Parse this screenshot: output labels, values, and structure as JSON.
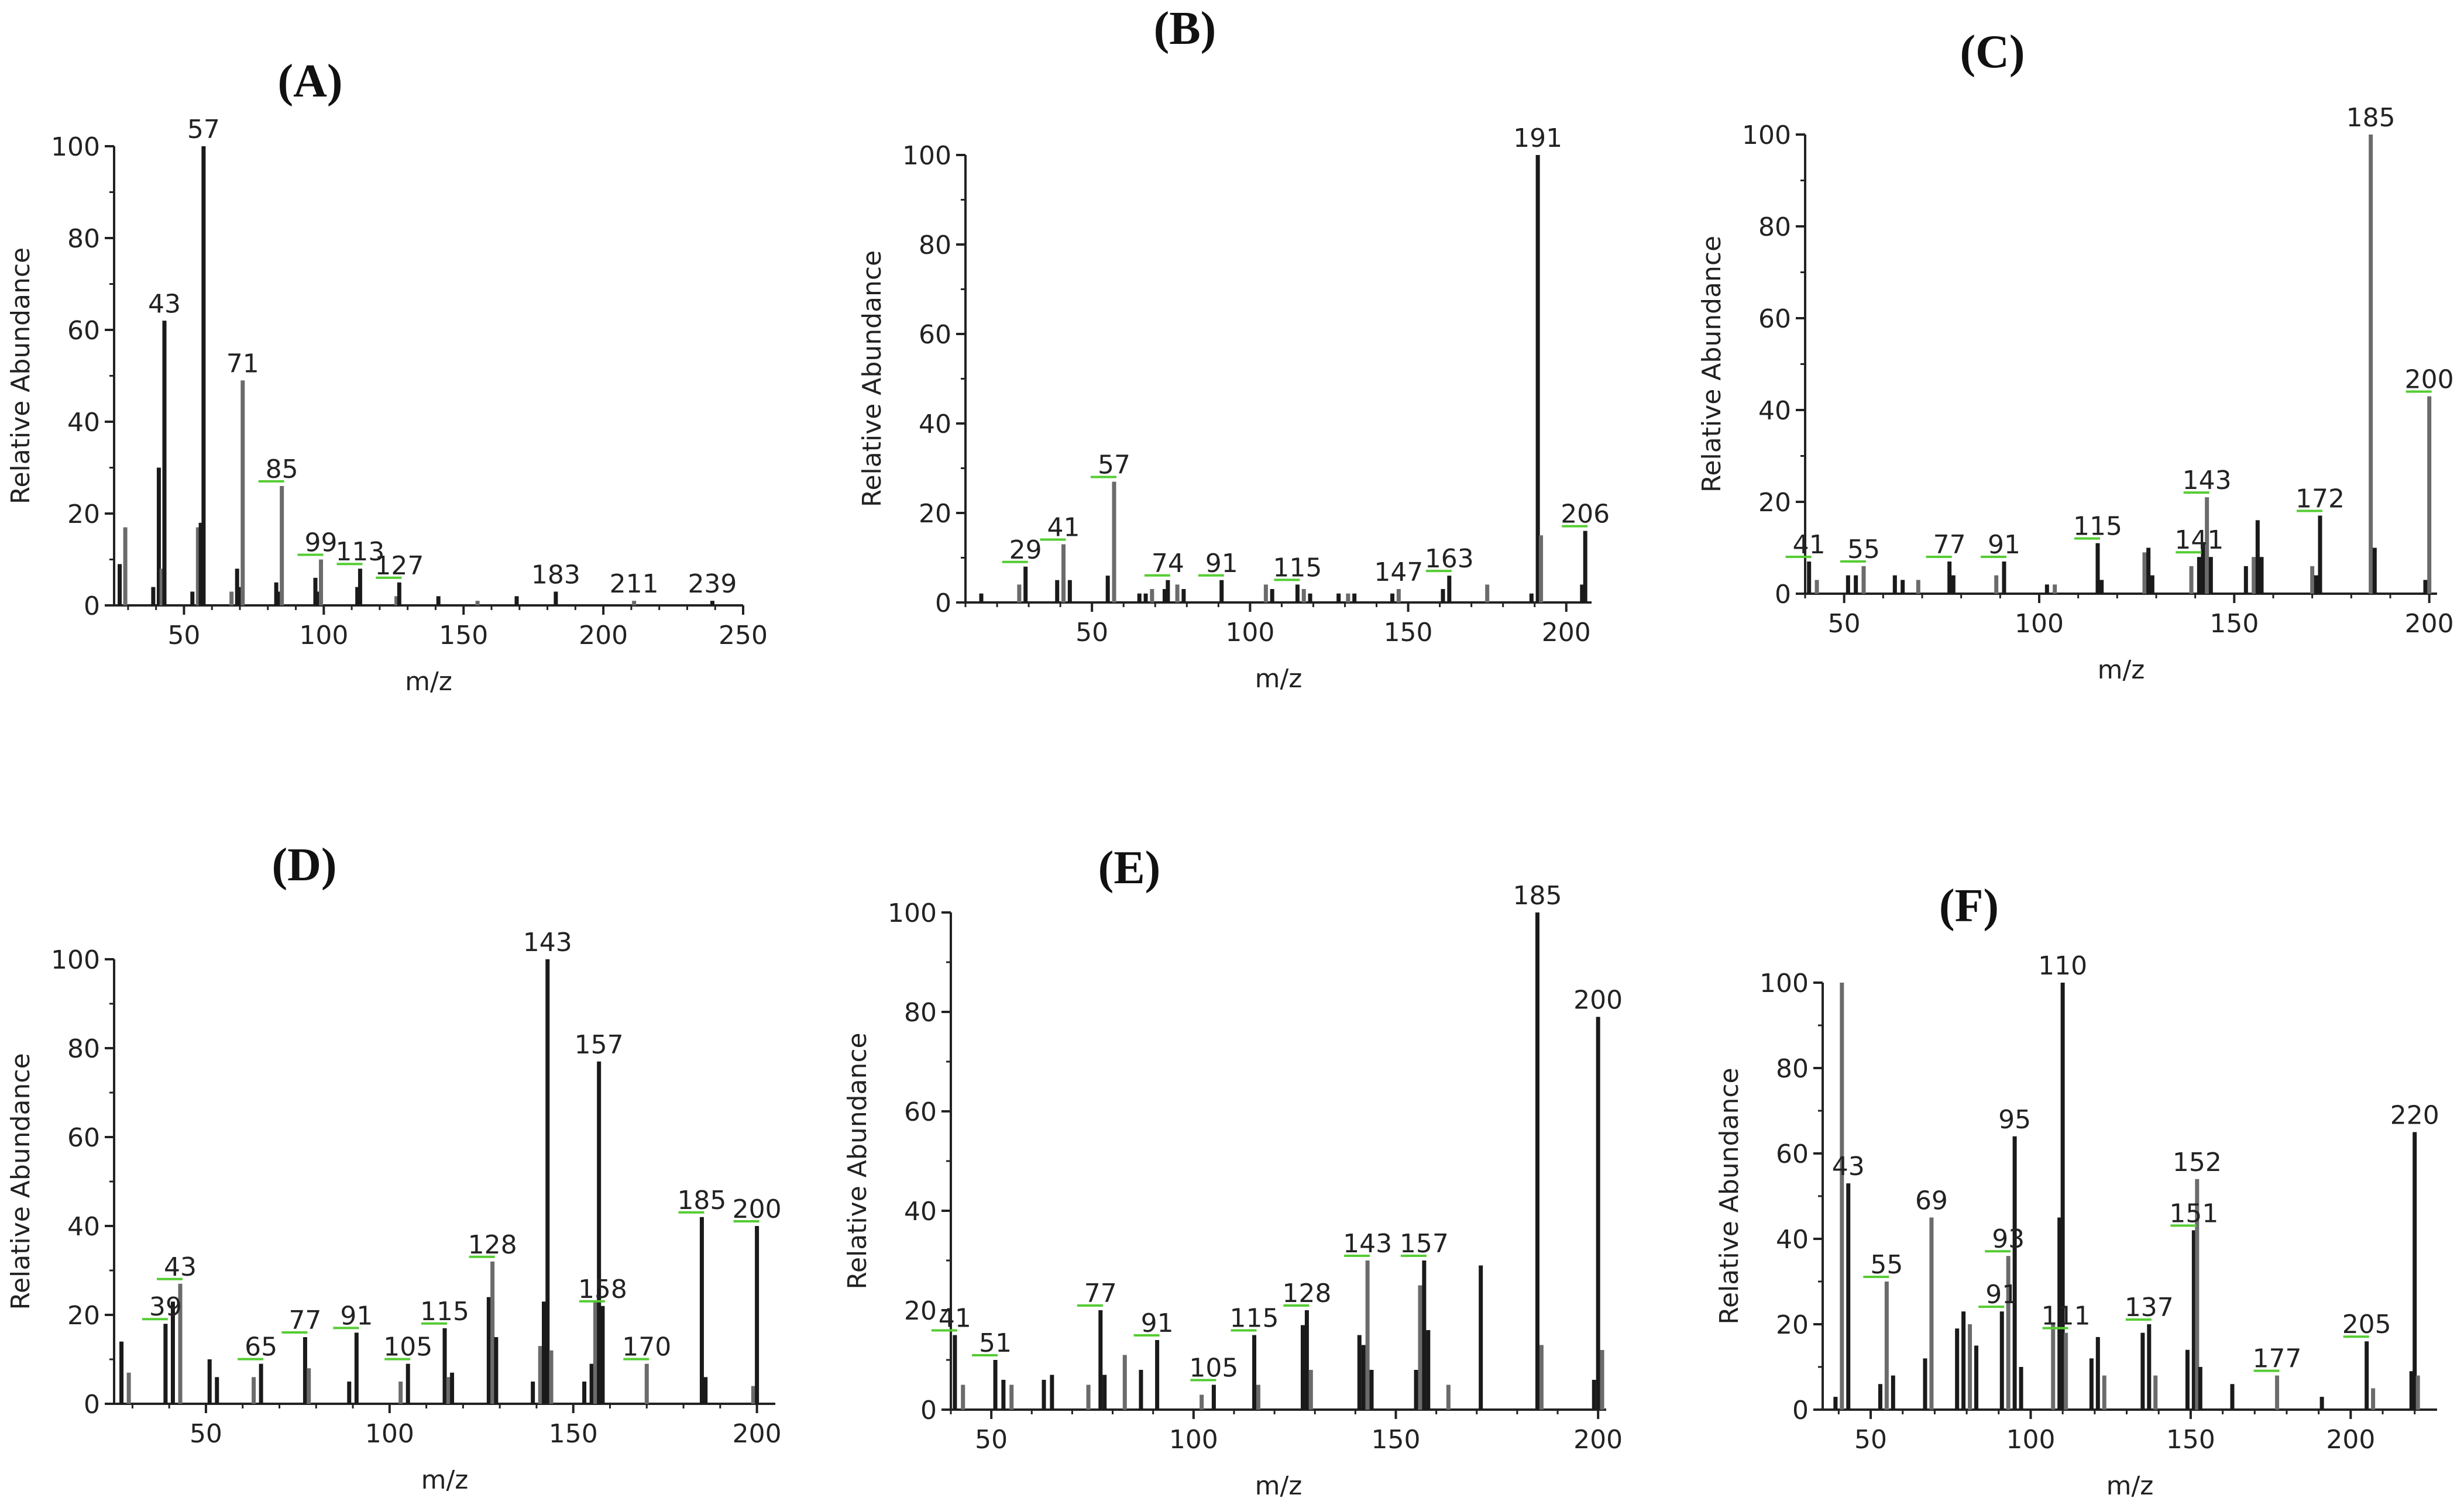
{
  "chart_data": [
    {
      "panel": "(A)",
      "type": "bar",
      "xlabel": "m/z",
      "ylabel": "Relative Abundance",
      "xlim": [
        25,
        250
      ],
      "ylim": [
        0,
        100
      ],
      "xticks": [
        50,
        100,
        150,
        200,
        250
      ],
      "yticks": [
        0,
        20,
        40,
        60,
        80,
        100
      ],
      "peaks": [
        [
          27,
          9
        ],
        [
          29,
          17
        ],
        [
          39,
          4
        ],
        [
          41,
          30
        ],
        [
          42,
          8
        ],
        [
          43,
          62
        ],
        [
          53,
          3
        ],
        [
          55,
          17
        ],
        [
          56,
          18
        ],
        [
          57,
          100
        ],
        [
          67,
          3
        ],
        [
          69,
          8
        ],
        [
          70,
          4
        ],
        [
          71,
          49
        ],
        [
          83,
          5
        ],
        [
          84,
          3
        ],
        [
          85,
          26
        ],
        [
          97,
          6
        ],
        [
          98,
          3
        ],
        [
          99,
          10
        ],
        [
          112,
          4
        ],
        [
          113,
          8
        ],
        [
          126,
          2
        ],
        [
          127,
          5
        ],
        [
          141,
          2
        ],
        [
          155,
          1
        ],
        [
          169,
          2
        ],
        [
          183,
          3
        ],
        [
          211,
          1
        ],
        [
          239,
          1
        ]
      ],
      "labels": [
        {
          "text": "43",
          "x": 43,
          "y": 62
        },
        {
          "text": "57",
          "x": 57,
          "y": 100
        },
        {
          "text": "71",
          "x": 71,
          "y": 49
        },
        {
          "text": "85",
          "x": 85,
          "y": 26
        },
        {
          "text": "99",
          "x": 99,
          "y": 10
        },
        {
          "text": "113",
          "x": 113,
          "y": 8
        },
        {
          "text": "127",
          "x": 127,
          "y": 5
        },
        {
          "text": "183",
          "x": 183,
          "y": 3
        },
        {
          "text": "211",
          "x": 211,
          "y": 1
        },
        {
          "text": "239",
          "x": 239,
          "y": 1
        }
      ]
    },
    {
      "panel": "(B)",
      "type": "bar",
      "xlabel": "m/z",
      "ylabel": "Relative Abundance",
      "xlim": [
        10,
        208
      ],
      "ylim": [
        0,
        100
      ],
      "xticks": [
        50,
        100,
        150,
        200
      ],
      "yticks": [
        0,
        20,
        40,
        60,
        80,
        100
      ],
      "peaks": [
        [
          15,
          2
        ],
        [
          27,
          4
        ],
        [
          29,
          8
        ],
        [
          39,
          5
        ],
        [
          41,
          13
        ],
        [
          43,
          5
        ],
        [
          55,
          6
        ],
        [
          57,
          27
        ],
        [
          65,
          2
        ],
        [
          67,
          2
        ],
        [
          69,
          3
        ],
        [
          73,
          3
        ],
        [
          74,
          5
        ],
        [
          77,
          4
        ],
        [
          79,
          3
        ],
        [
          91,
          5
        ],
        [
          105,
          4
        ],
        [
          107,
          3
        ],
        [
          115,
          4
        ],
        [
          117,
          3
        ],
        [
          119,
          2
        ],
        [
          128,
          2
        ],
        [
          131,
          2
        ],
        [
          133,
          2
        ],
        [
          145,
          2
        ],
        [
          147,
          3
        ],
        [
          161,
          3
        ],
        [
          163,
          6
        ],
        [
          175,
          4
        ],
        [
          189,
          2
        ],
        [
          191,
          100
        ],
        [
          192,
          15
        ],
        [
          205,
          4
        ],
        [
          206,
          16
        ]
      ],
      "labels": [
        {
          "text": "29",
          "x": 29,
          "y": 8
        },
        {
          "text": "41",
          "x": 41,
          "y": 13
        },
        {
          "text": "57",
          "x": 57,
          "y": 27
        },
        {
          "text": "74",
          "x": 74,
          "y": 5
        },
        {
          "text": "91",
          "x": 91,
          "y": 5
        },
        {
          "text": "115",
          "x": 115,
          "y": 4
        },
        {
          "text": "147",
          "x": 147,
          "y": 3
        },
        {
          "text": "163",
          "x": 163,
          "y": 6
        },
        {
          "text": "191",
          "x": 191,
          "y": 100
        },
        {
          "text": "206",
          "x": 206,
          "y": 16
        }
      ]
    },
    {
      "panel": "(C)",
      "type": "bar",
      "xlabel": "m/z",
      "ylabel": "Relative Abundance",
      "xlim": [
        40,
        202
      ],
      "ylim": [
        0,
        100
      ],
      "xticks": [
        50,
        100,
        150,
        200
      ],
      "yticks": [
        0,
        20,
        40,
        60,
        80,
        100
      ],
      "peaks": [
        [
          41,
          7
        ],
        [
          43,
          3
        ],
        [
          51,
          4
        ],
        [
          53,
          4
        ],
        [
          55,
          6
        ],
        [
          63,
          4
        ],
        [
          65,
          3
        ],
        [
          69,
          3
        ],
        [
          77,
          7
        ],
        [
          78,
          4
        ],
        [
          89,
          4
        ],
        [
          91,
          7
        ],
        [
          102,
          2
        ],
        [
          104,
          2
        ],
        [
          115,
          11
        ],
        [
          116,
          3
        ],
        [
          127,
          9
        ],
        [
          128,
          10
        ],
        [
          129,
          4
        ],
        [
          139,
          6
        ],
        [
          141,
          8
        ],
        [
          142,
          11
        ],
        [
          143,
          21
        ],
        [
          144,
          8
        ],
        [
          153,
          6
        ],
        [
          155,
          8
        ],
        [
          156,
          16
        ],
        [
          157,
          8
        ],
        [
          170,
          6
        ],
        [
          171,
          4
        ],
        [
          172,
          17
        ],
        [
          185,
          100
        ],
        [
          186,
          10
        ],
        [
          199,
          3
        ],
        [
          200,
          43
        ]
      ],
      "labels": [
        {
          "text": "41",
          "x": 41,
          "y": 7
        },
        {
          "text": "55",
          "x": 55,
          "y": 6
        },
        {
          "text": "77",
          "x": 77,
          "y": 7
        },
        {
          "text": "91",
          "x": 91,
          "y": 7
        },
        {
          "text": "115",
          "x": 115,
          "y": 11
        },
        {
          "text": "141",
          "x": 141,
          "y": 8
        },
        {
          "text": "143",
          "x": 143,
          "y": 21
        },
        {
          "text": "172",
          "x": 172,
          "y": 17
        },
        {
          "text": "185",
          "x": 185,
          "y": 100
        },
        {
          "text": "200",
          "x": 200,
          "y": 43
        }
      ]
    },
    {
      "panel": "(D)",
      "type": "bar",
      "xlabel": "m/z",
      "ylabel": "Relative Abundance",
      "xlim": [
        25,
        205
      ],
      "ylim": [
        0,
        100
      ],
      "xticks": [
        50,
        100,
        150,
        200
      ],
      "yticks": [
        0,
        20,
        40,
        60,
        80,
        100
      ],
      "peaks": [
        [
          27,
          14
        ],
        [
          29,
          7
        ],
        [
          39,
          18
        ],
        [
          41,
          23
        ],
        [
          43,
          27
        ],
        [
          51,
          10
        ],
        [
          53,
          6
        ],
        [
          63,
          6
        ],
        [
          65,
          9
        ],
        [
          77,
          15
        ],
        [
          78,
          8
        ],
        [
          89,
          5
        ],
        [
          91,
          16
        ],
        [
          103,
          5
        ],
        [
          105,
          9
        ],
        [
          115,
          17
        ],
        [
          116,
          6
        ],
        [
          117,
          7
        ],
        [
          127,
          24
        ],
        [
          128,
          32
        ],
        [
          129,
          15
        ],
        [
          139,
          5
        ],
        [
          141,
          13
        ],
        [
          142,
          23
        ],
        [
          143,
          100
        ],
        [
          144,
          12
        ],
        [
          153,
          5
        ],
        [
          155,
          9
        ],
        [
          156,
          23
        ],
        [
          157,
          77
        ],
        [
          158,
          22
        ],
        [
          170,
          9
        ],
        [
          185,
          42
        ],
        [
          186,
          6
        ],
        [
          199,
          4
        ],
        [
          200,
          40
        ]
      ],
      "labels": [
        {
          "text": "39",
          "x": 39,
          "y": 18
        },
        {
          "text": "43",
          "x": 43,
          "y": 27
        },
        {
          "text": "65",
          "x": 65,
          "y": 9
        },
        {
          "text": "77",
          "x": 77,
          "y": 15
        },
        {
          "text": "91",
          "x": 91,
          "y": 16
        },
        {
          "text": "105",
          "x": 105,
          "y": 9
        },
        {
          "text": "115",
          "x": 115,
          "y": 17
        },
        {
          "text": "128",
          "x": 128,
          "y": 32
        },
        {
          "text": "143",
          "x": 143,
          "y": 100
        },
        {
          "text": "157",
          "x": 157,
          "y": 77
        },
        {
          "text": "158",
          "x": 158,
          "y": 22
        },
        {
          "text": "170",
          "x": 170,
          "y": 9
        },
        {
          "text": "185",
          "x": 185,
          "y": 42
        },
        {
          "text": "200",
          "x": 200,
          "y": 40
        }
      ]
    },
    {
      "panel": "(E)",
      "type": "bar",
      "xlabel": "m/z",
      "ylabel": "Relative Abundance",
      "xlim": [
        40,
        202
      ],
      "ylim": [
        0,
        100
      ],
      "xticks": [
        50,
        100,
        150,
        200
      ],
      "yticks": [
        0,
        20,
        40,
        60,
        80,
        100
      ],
      "peaks": [
        [
          41,
          15
        ],
        [
          43,
          5
        ],
        [
          51,
          10
        ],
        [
          53,
          6
        ],
        [
          55,
          5
        ],
        [
          63,
          6
        ],
        [
          65,
          7
        ],
        [
          74,
          5
        ],
        [
          77,
          20
        ],
        [
          78,
          7
        ],
        [
          83,
          11
        ],
        [
          87,
          8
        ],
        [
          91,
          14
        ],
        [
          102,
          3
        ],
        [
          105,
          5
        ],
        [
          115,
          15
        ],
        [
          116,
          5
        ],
        [
          127,
          17
        ],
        [
          128,
          20
        ],
        [
          129,
          8
        ],
        [
          141,
          15
        ],
        [
          142,
          13
        ],
        [
          143,
          30
        ],
        [
          144,
          8
        ],
        [
          155,
          8
        ],
        [
          156,
          25
        ],
        [
          157,
          30
        ],
        [
          158,
          16
        ],
        [
          163,
          5
        ],
        [
          171,
          29
        ],
        [
          185,
          100
        ],
        [
          186,
          13
        ],
        [
          199,
          6
        ],
        [
          200,
          79
        ],
        [
          201,
          12
        ]
      ],
      "labels": [
        {
          "text": "41",
          "x": 41,
          "y": 15
        },
        {
          "text": "51",
          "x": 51,
          "y": 10
        },
        {
          "text": "77",
          "x": 77,
          "y": 20
        },
        {
          "text": "91",
          "x": 91,
          "y": 14
        },
        {
          "text": "105",
          "x": 105,
          "y": 5
        },
        {
          "text": "115",
          "x": 115,
          "y": 15
        },
        {
          "text": "128",
          "x": 128,
          "y": 20
        },
        {
          "text": "143",
          "x": 143,
          "y": 30
        },
        {
          "text": "157",
          "x": 157,
          "y": 30
        },
        {
          "text": "185",
          "x": 185,
          "y": 100
        },
        {
          "text": "200",
          "x": 200,
          "y": 79
        }
      ]
    },
    {
      "panel": "(F)",
      "type": "bar",
      "xlabel": "m/z",
      "ylabel": "Relative Abundance",
      "xlim": [
        35,
        227
      ],
      "ylim": [
        0,
        100
      ],
      "xticks": [
        50,
        100,
        150,
        200
      ],
      "yticks": [
        0,
        20,
        40,
        60,
        80,
        100
      ],
      "peaks": [
        [
          39,
          3
        ],
        [
          41,
          100
        ],
        [
          43,
          53
        ],
        [
          53,
          6
        ],
        [
          55,
          30
        ],
        [
          57,
          8
        ],
        [
          67,
          12
        ],
        [
          69,
          45
        ],
        [
          77,
          19
        ],
        [
          79,
          23
        ],
        [
          81,
          20
        ],
        [
          83,
          15
        ],
        [
          91,
          23
        ],
        [
          93,
          36
        ],
        [
          95,
          64
        ],
        [
          97,
          10
        ],
        [
          107,
          20
        ],
        [
          109,
          45
        ],
        [
          110,
          100
        ],
        [
          111,
          18
        ],
        [
          119,
          12
        ],
        [
          121,
          17
        ],
        [
          123,
          8
        ],
        [
          135,
          18
        ],
        [
          137,
          20
        ],
        [
          139,
          8
        ],
        [
          149,
          14
        ],
        [
          151,
          42
        ],
        [
          152,
          54
        ],
        [
          153,
          10
        ],
        [
          163,
          6
        ],
        [
          177,
          8
        ],
        [
          191,
          3
        ],
        [
          205,
          16
        ],
        [
          207,
          5
        ],
        [
          219,
          9
        ],
        [
          220,
          65
        ],
        [
          221,
          8
        ]
      ],
      "labels": [
        {
          "text": "43",
          "x": 43,
          "y": 53
        },
        {
          "text": "55",
          "x": 55,
          "y": 30
        },
        {
          "text": "69",
          "x": 69,
          "y": 45
        },
        {
          "text": "91",
          "x": 91,
          "y": 23
        },
        {
          "text": "93",
          "x": 93,
          "y": 36
        },
        {
          "text": "95",
          "x": 95,
          "y": 64
        },
        {
          "text": "110",
          "x": 110,
          "y": 100
        },
        {
          "text": "111",
          "x": 111,
          "y": 18
        },
        {
          "text": "137",
          "x": 137,
          "y": 20
        },
        {
          "text": "151",
          "x": 151,
          "y": 42
        },
        {
          "text": "152",
          "x": 152,
          "y": 54
        },
        {
          "text": "177",
          "x": 177,
          "y": 8
        },
        {
          "text": "205",
          "x": 205,
          "y": 16
        },
        {
          "text": "220",
          "x": 220,
          "y": 65
        }
      ]
    }
  ],
  "colors": {
    "axis": "#222222",
    "peak": "#1a1a1a",
    "peak_light": "#6b6b6b",
    "leader": "#55cc33",
    "background": "#ffffff"
  }
}
